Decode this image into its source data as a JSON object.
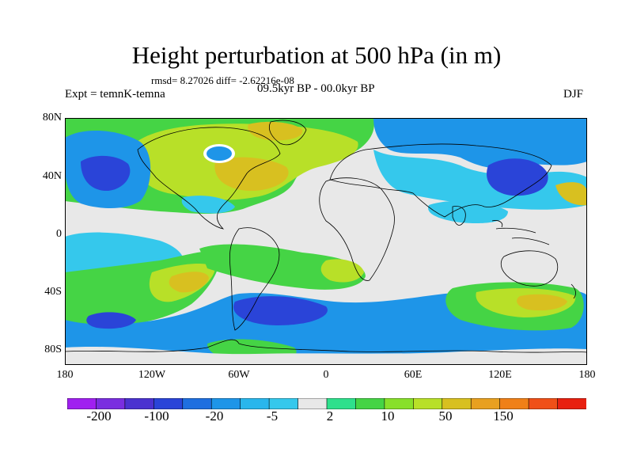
{
  "title": "Height perturbation at 500 hPa (in m)",
  "rmsd_line": "rmsd= 8.27026 diff= -2.62216e-08",
  "experiment": "Expt = temnK-temna",
  "period": "09.5kyr BP - 00.0kyr BP",
  "season": "DJF",
  "lat_labels": [
    "80N",
    "40N",
    "0",
    "40S",
    "80S"
  ],
  "lon_labels": [
    "180",
    "120W",
    "60W",
    "0",
    "60E",
    "120E",
    "180"
  ],
  "colorbar": {
    "colors": [
      "#a020f0",
      "#7a2ee0",
      "#4b32d0",
      "#2a44d8",
      "#1f6fe0",
      "#1e95e8",
      "#29b6ec",
      "#35c8ec",
      "#e8e8e8",
      "#2ee08c",
      "#45d445",
      "#88e02a",
      "#b8e028",
      "#d8c020",
      "#e8a020",
      "#f08018",
      "#f05018",
      "#e82010"
    ],
    "labels": [
      "-200",
      "-100",
      "-20",
      "-5",
      "2",
      "10",
      "50",
      "150"
    ]
  },
  "colors": {
    "neutral": "#e8e8e8",
    "cyan": "#35c8ec",
    "sky": "#1e95e8",
    "blue": "#2a44d8",
    "green": "#45d445",
    "yellowgreen": "#b8e028",
    "gold": "#d8c020",
    "orange": "#e8a020"
  }
}
